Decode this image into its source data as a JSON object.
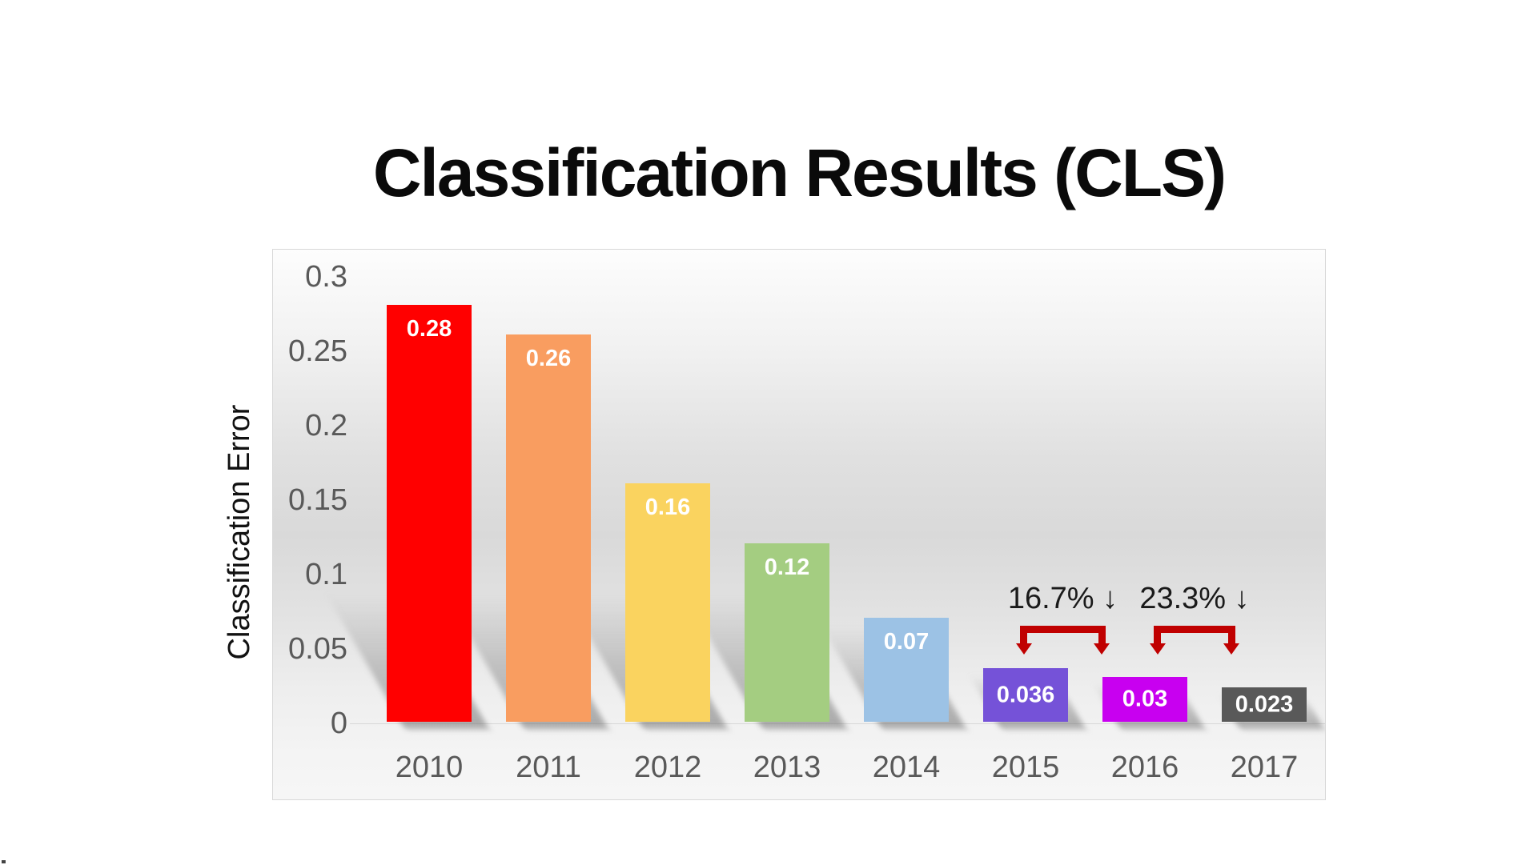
{
  "page": {
    "background": "#FFFFFF"
  },
  "chart_data": {
    "type": "bar",
    "title": "Classification Results (CLS)",
    "ylabel": "Classification Error",
    "xlabel": "",
    "categories": [
      "2010",
      "2011",
      "2012",
      "2013",
      "2014",
      "2015",
      "2016",
      "2017"
    ],
    "values": [
      0.28,
      0.26,
      0.16,
      0.12,
      0.07,
      0.036,
      0.03,
      0.023
    ],
    "bar_labels": [
      "0.28",
      "0.26",
      "0.16",
      "0.12",
      "0.07",
      "0.036",
      "0.03",
      "0.023"
    ],
    "bar_colors": [
      "#FF0000",
      "#F99D60",
      "#FAD35F",
      "#A4CD81",
      "#9CC2E5",
      "#7552D8",
      "#C800F0",
      "#595959"
    ],
    "bar_label_color": "#FFFFFF",
    "yticks": [
      "0.3",
      "0.25",
      "0.2",
      "0.15",
      "0.1",
      "0.05",
      "0"
    ],
    "ylim": [
      0,
      0.3
    ],
    "grid": false,
    "legend": null,
    "axis_text_color": "#595959",
    "plot_background": "gradient-white-gray-white",
    "annotations": [
      {
        "text": "16.7% ↓",
        "between": [
          "2015",
          "2016"
        ],
        "color": "#C00000"
      },
      {
        "text": "23.3% ↓",
        "between": [
          "2016",
          "2017"
        ],
        "color": "#C00000"
      }
    ]
  }
}
